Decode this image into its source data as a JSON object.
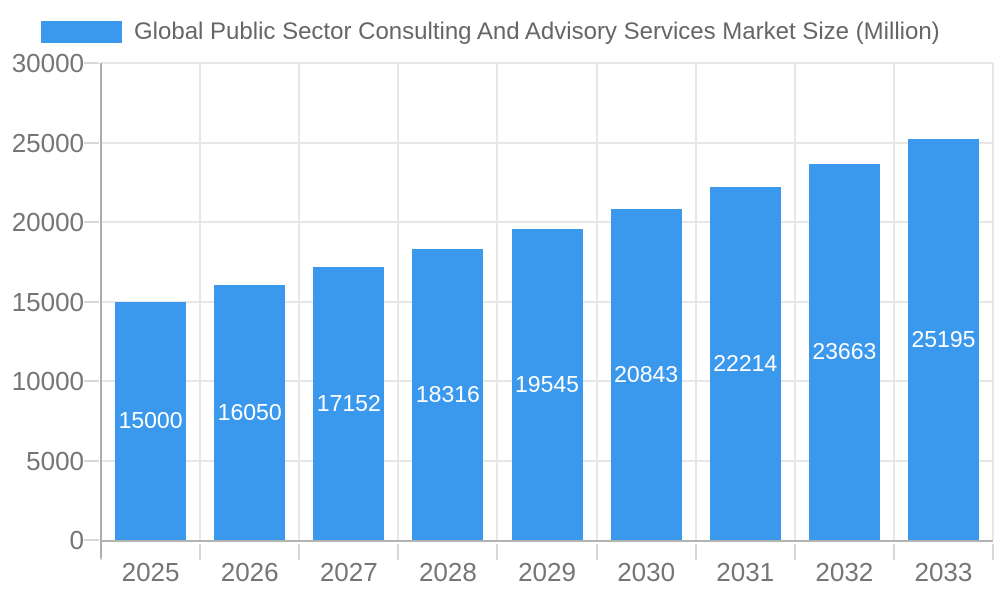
{
  "chart_data": {
    "type": "bar",
    "title": "Global Public Sector Consulting And Advisory Services Market Size (Million)",
    "categories": [
      "2025",
      "2026",
      "2027",
      "2028",
      "2029",
      "2030",
      "2031",
      "2032",
      "2033"
    ],
    "values": [
      15000,
      16050,
      17152,
      18316,
      19545,
      20843,
      22214,
      23663,
      25195
    ],
    "series": [
      {
        "name": "Global Public Sector Consulting And Advisory Services Market Size (Million)",
        "values": [
          15000,
          16050,
          17152,
          18316,
          19545,
          20843,
          22214,
          23663,
          25195
        ]
      }
    ],
    "xlabel": "",
    "ylabel": "",
    "ylim": [
      0,
      30000
    ],
    "yticks": [
      0,
      5000,
      10000,
      15000,
      20000,
      25000,
      30000
    ],
    "grid": true,
    "legend_position": "top-left",
    "value_labels": "inside-center",
    "colors": {
      "bar": "#3A99EC",
      "title_text": "#666666",
      "axis_text": "#757575",
      "gridline": "#E7E7E7",
      "axis_line": "#ADADAD",
      "baseline": "#B3B3B3",
      "tick_mark": "#D8D8D8",
      "value_label": "#FFFFFF",
      "background": "#FFFFFF"
    }
  }
}
